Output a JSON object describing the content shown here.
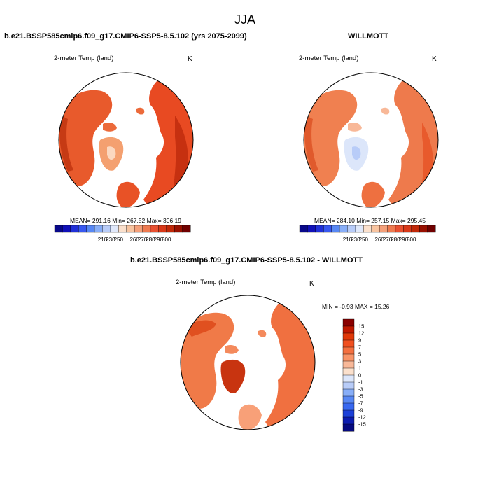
{
  "figure": {
    "title": "JJA"
  },
  "panels": [
    {
      "id": "model",
      "title": "b.e21.BSSP585cmip6.f09_g17.CMIP6-SSP5-8.5.102 (yrs 2075-2099)",
      "variable": "2-meter Temp (land)",
      "units": "K",
      "stats": "MEAN= 291.16  Min= 267.52  Max= 306.19"
    },
    {
      "id": "obs",
      "title": "WILLMOTT",
      "variable": "2-meter Temp (land)",
      "units": "K",
      "stats": "MEAN= 284.10  Min= 257.15  Max= 295.45"
    },
    {
      "id": "diff",
      "title": "b.e21.BSSP585cmip6.f09_g17.CMIP6-SSP5-8.5.102 - WILLMOTT",
      "variable": "2-meter Temp (land)",
      "units": "K",
      "stats": "MIN =  -0.93 MAX =  15.26"
    }
  ],
  "colorbar_abs": {
    "labels": [
      "210",
      "230",
      "250",
      "260",
      "270",
      "280",
      "290",
      "300"
    ],
    "colors": [
      "#08088a",
      "#1010b8",
      "#2030d8",
      "#3858f0",
      "#5888f4",
      "#88aef8",
      "#b8ccf8",
      "#e0e8fa",
      "#fbe0cc",
      "#f8c4a0",
      "#f4a07a",
      "#ee7a50",
      "#e85030",
      "#d83818",
      "#c02808",
      "#981000",
      "#700000"
    ]
  },
  "colorbar_diff": {
    "labels": [
      "15",
      "12",
      "9",
      "7",
      "5",
      "3",
      "1",
      "0",
      "-1",
      "-3",
      "-5",
      "-7",
      "-9",
      "-12",
      "-15"
    ],
    "colors": [
      "#8a0000",
      "#c01800",
      "#e03808",
      "#f05020",
      "#f47040",
      "#f89468",
      "#f8b898",
      "#fbe0cc",
      "#dce6fa",
      "#b8ccf8",
      "#88aef8",
      "#5888f4",
      "#3868f0",
      "#1c40d8",
      "#0c1cb0",
      "#060a80"
    ]
  }
}
